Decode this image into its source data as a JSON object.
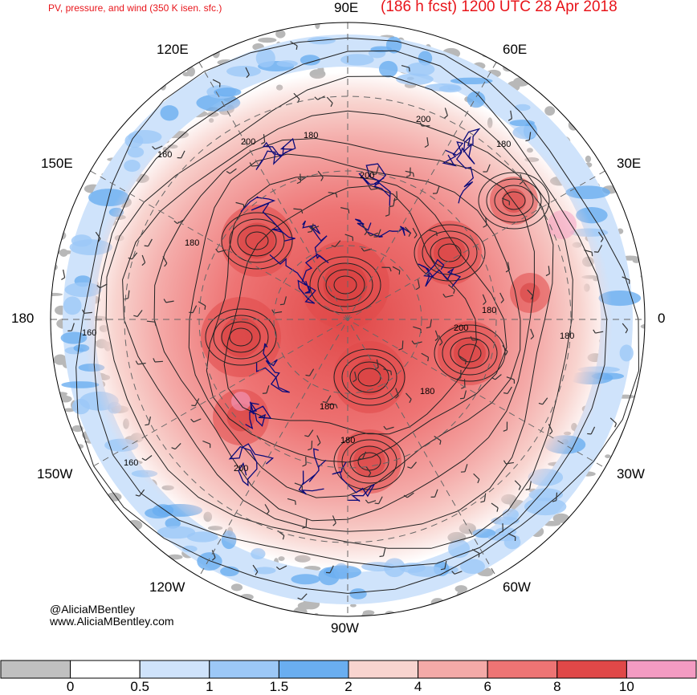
{
  "header": {
    "left_title": "PV, pressure, and wind (350 K isen. sfc.)",
    "right_title": "(186 h fcst) 1200 UTC 28 Apr 2018"
  },
  "longitude_labels": {
    "e90": "90E",
    "e60": "60E",
    "e30": "30E",
    "zero": "0",
    "w30": "30W",
    "w60": "60W",
    "w90": "90W",
    "w120": "120W",
    "w150": "150W",
    "d180": "180",
    "e150": "150E",
    "e120": "120E"
  },
  "pressure_labels": [
    "200",
    "180",
    "180",
    "200",
    "200",
    "180",
    "180",
    "200",
    "180",
    "180",
    "180",
    "200",
    "180",
    "160",
    "160",
    "160"
  ],
  "credits": {
    "handle": "@AliciaMBentley",
    "website": "www.AliciaMBentley.com"
  },
  "colorbar": {
    "colors": [
      "#c0c0c0",
      "#ffffff",
      "#cfe3fb",
      "#9cc8f7",
      "#6aaef0",
      "#f8d4cf",
      "#f4aaa8",
      "#ee7474",
      "#e04848",
      "#f39bc2"
    ],
    "labels": [
      "0",
      "0.5",
      "1",
      "1.5",
      "2",
      "4",
      "6",
      "8",
      "10"
    ]
  }
}
